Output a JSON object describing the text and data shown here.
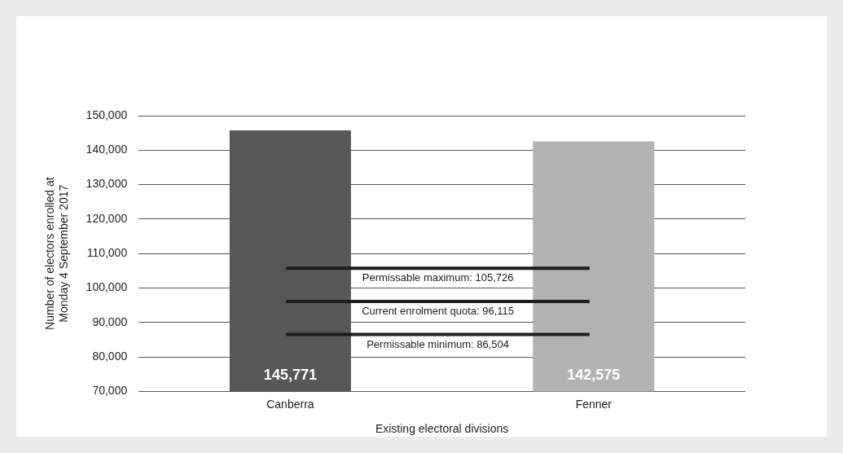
{
  "chart_data": {
    "type": "bar",
    "xlabel": "Existing electoral divisions",
    "ylabel": "Number of electors enrolled at\nMonday 4 September 2017",
    "categories": [
      "Canberra",
      "Fenner"
    ],
    "values": [
      145771,
      142575
    ],
    "colors": [
      "#575756",
      "#b2b2b2"
    ],
    "value_labels": [
      "145,771",
      "142,575"
    ],
    "ylim": [
      70000,
      150000
    ],
    "yticks": [
      {
        "value": 70000,
        "label": "70,000"
      },
      {
        "value": 80000,
        "label": "80,000"
      },
      {
        "value": 90000,
        "label": "90,000"
      },
      {
        "value": 100000,
        "label": "100,000"
      },
      {
        "value": 110000,
        "label": "110,000"
      },
      {
        "value": 120000,
        "label": "120,000"
      },
      {
        "value": 130000,
        "label": "130,000"
      },
      {
        "value": 140000,
        "label": "140,000"
      },
      {
        "value": 150000,
        "label": "150,000"
      }
    ],
    "grid": "y",
    "ref_lines": [
      {
        "axis": "y",
        "value": 105726,
        "label": "Permissable maximum: 105,726",
        "color": "#1d1d1b"
      },
      {
        "axis": "y",
        "value": 96115,
        "label": "Current enrolment quota: 96,115",
        "color": "#1d1d1b"
      },
      {
        "axis": "y",
        "value": 86504,
        "label": "Permissable minimum: 86,504",
        "color": "#1d1d1b"
      }
    ]
  }
}
